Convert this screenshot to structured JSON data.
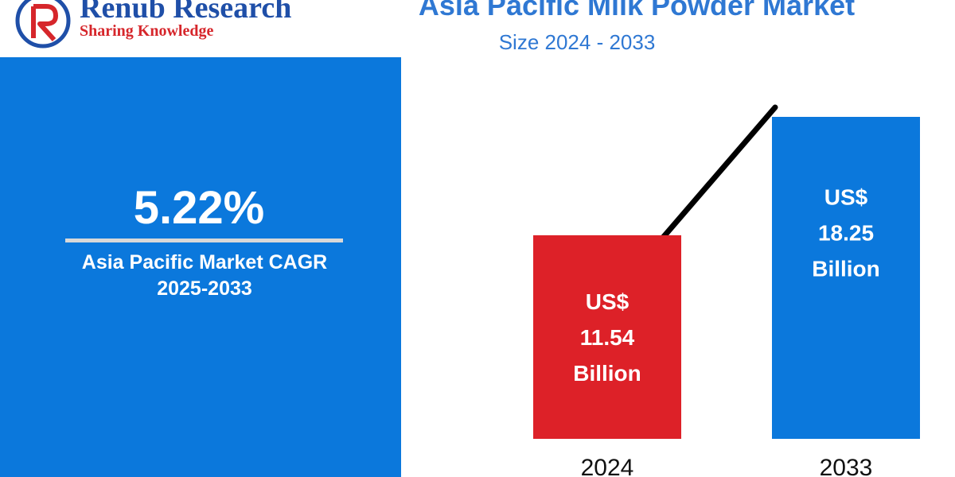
{
  "brand": {
    "name": "Renub Research",
    "tagline": "Sharing Knowledge"
  },
  "header": {
    "title": "Asia Pacific Milk Powder Market",
    "subtitle": "Size 2024 - 2033"
  },
  "cagr": {
    "value": "5.22%",
    "label_line1": "Asia Pacific Market CAGR",
    "label_line2": "2025-2033"
  },
  "colors": {
    "panel_blue": "#0b78dc",
    "bar_red": "#dd2128",
    "bar_blue": "#0b78dc",
    "title_blue": "#2f78d3",
    "brand_navy": "#1f4fa8",
    "brand_red": "#d6262b"
  },
  "chart_data": {
    "type": "bar",
    "categories": [
      "2024",
      "2033"
    ],
    "values": [
      11.54,
      18.25
    ],
    "unit": "US$ Billion",
    "bar_labels": [
      [
        "US$",
        "11.54",
        "Billion"
      ],
      [
        "US$",
        "18.25",
        "Billion"
      ]
    ],
    "bar_colors": [
      "#dd2128",
      "#0b78dc"
    ],
    "trend_line": true,
    "grid": false
  }
}
